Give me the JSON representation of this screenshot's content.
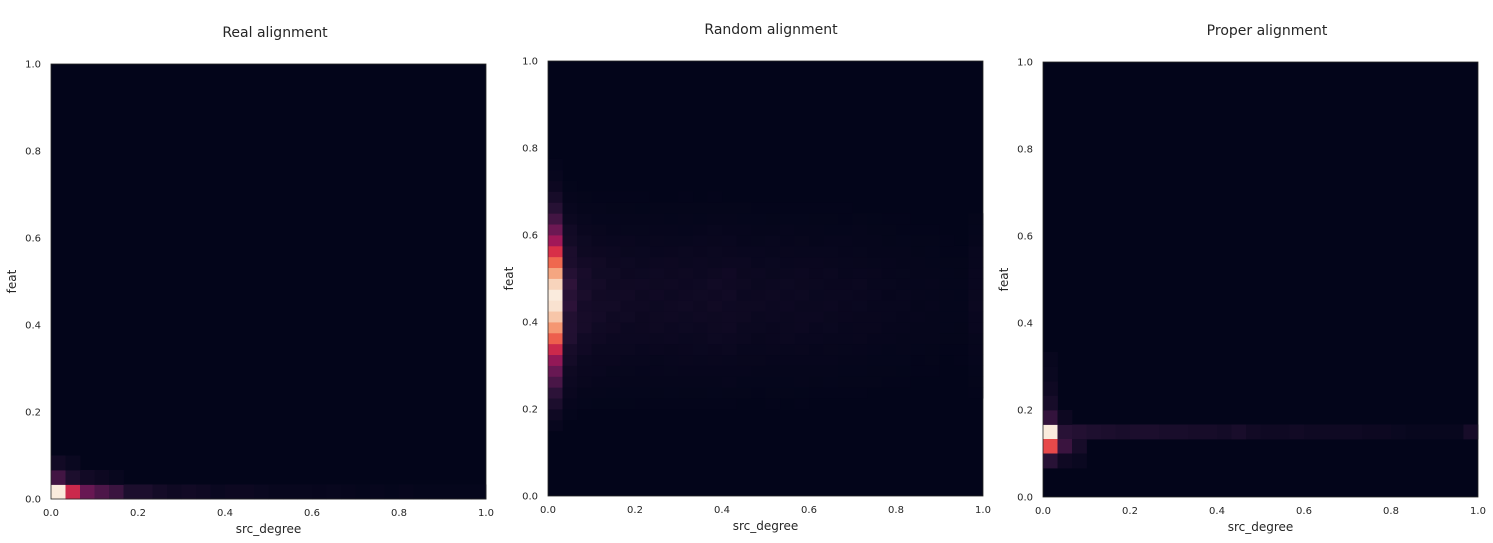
{
  "chart_data": [
    {
      "type": "heatmap",
      "title": "Real alignment",
      "xlabel": "src_degree",
      "ylabel": "feat",
      "xlim": [
        0,
        1
      ],
      "ylim": [
        0,
        1
      ],
      "xticks": [
        "0.0",
        "0.2",
        "0.4",
        "0.6",
        "0.8",
        "1.0"
      ],
      "yticks": [
        "0.0",
        "0.2",
        "0.4",
        "0.6",
        "0.8",
        "1.0"
      ],
      "bins": 30,
      "grid": false,
      "colormap": "rocket",
      "cells": [
        [
          0,
          0,
          1.0
        ],
        [
          1,
          0,
          0.55
        ],
        [
          2,
          0,
          0.32
        ],
        [
          3,
          0,
          0.25
        ],
        [
          4,
          0,
          0.2
        ],
        [
          5,
          0,
          0.1
        ],
        [
          6,
          0,
          0.1
        ],
        [
          7,
          0,
          0.07
        ],
        [
          8,
          0,
          0.05
        ],
        [
          9,
          0,
          0.06
        ],
        [
          10,
          0,
          0.05
        ],
        [
          11,
          0,
          0.03
        ],
        [
          12,
          0,
          0.04
        ],
        [
          13,
          0,
          0.04
        ],
        [
          14,
          0,
          0.03
        ],
        [
          15,
          0,
          0.02
        ],
        [
          16,
          0,
          0.02
        ],
        [
          17,
          0,
          0.02
        ],
        [
          18,
          0,
          0.015
        ],
        [
          19,
          0,
          0.02
        ],
        [
          20,
          0,
          0.015
        ],
        [
          21,
          0,
          0.01
        ],
        [
          22,
          0,
          0.015
        ],
        [
          23,
          0,
          0.01
        ],
        [
          24,
          0,
          0.015
        ],
        [
          25,
          0,
          0.01
        ],
        [
          26,
          0,
          0.01
        ],
        [
          27,
          0,
          0.01
        ],
        [
          28,
          0,
          0.01
        ],
        [
          29,
          0,
          0.01
        ],
        [
          0,
          1,
          0.22
        ],
        [
          1,
          1,
          0.1
        ],
        [
          2,
          1,
          0.06
        ],
        [
          3,
          1,
          0.04
        ],
        [
          4,
          1,
          0.02
        ],
        [
          0,
          2,
          0.06
        ],
        [
          1,
          2,
          0.03
        ]
      ]
    },
    {
      "type": "heatmap",
      "title": "Random alignment",
      "xlabel": "src_degree",
      "ylabel": "feat",
      "xlim": [
        0,
        1
      ],
      "ylim": [
        0,
        1
      ],
      "xticks": [
        "0.0",
        "0.2",
        "0.4",
        "0.6",
        "0.8",
        "1.0"
      ],
      "yticks": [
        "0.0",
        "0.2",
        "0.4",
        "0.6",
        "0.8",
        "1.0"
      ],
      "bins": 30,
      "grid": false,
      "colormap": "rocket",
      "column_profile": [
        1.0,
        0.16,
        0.09,
        0.07,
        0.06,
        0.055,
        0.05,
        0.05,
        0.05,
        0.05,
        0.05,
        0.055,
        0.055,
        0.045,
        0.04,
        0.04,
        0.04,
        0.04,
        0.035,
        0.035,
        0.03,
        0.03,
        0.025,
        0.02,
        0.02,
        0.015,
        0.015,
        0.01,
        0.01,
        0.03
      ],
      "row_profile": [
        0.0,
        0.0,
        0.0,
        0.0,
        0.0,
        0.0,
        0.02,
        0.05,
        0.1,
        0.16,
        0.24,
        0.32,
        0.42,
        0.55,
        0.7,
        0.82,
        0.92,
        0.98,
        1.0,
        0.95,
        0.85,
        0.72,
        0.58,
        0.45,
        0.33,
        0.22,
        0.14,
        0.08,
        0.04,
        0.02,
        0.01,
        0.0,
        0.0,
        0.0,
        0.0,
        0.0,
        0.0,
        0.0,
        0.0,
        0.0
      ],
      "row_bins": 40
    },
    {
      "type": "heatmap",
      "title": "Proper alignment",
      "xlabel": "src_degree",
      "ylabel": "feat",
      "xlim": [
        0,
        1
      ],
      "ylim": [
        0,
        1
      ],
      "xticks": [
        "0.0",
        "0.2",
        "0.4",
        "0.6",
        "0.8",
        "1.0"
      ],
      "yticks": [
        "0.0",
        "0.2",
        "0.4",
        "0.6",
        "0.8",
        "1.0"
      ],
      "bins": 30,
      "grid": false,
      "colormap": "rocket",
      "cells": [
        [
          0,
          4,
          1.0
        ],
        [
          1,
          4,
          0.15
        ],
        [
          2,
          4,
          0.13
        ],
        [
          3,
          4,
          0.11
        ],
        [
          4,
          4,
          0.1
        ],
        [
          5,
          4,
          0.09
        ],
        [
          6,
          4,
          0.1
        ],
        [
          7,
          4,
          0.1
        ],
        [
          8,
          4,
          0.09
        ],
        [
          9,
          4,
          0.09
        ],
        [
          10,
          4,
          0.08
        ],
        [
          11,
          4,
          0.08
        ],
        [
          12,
          4,
          0.07
        ],
        [
          13,
          4,
          0.09
        ],
        [
          14,
          4,
          0.06
        ],
        [
          15,
          4,
          0.05
        ],
        [
          16,
          4,
          0.05
        ],
        [
          17,
          4,
          0.06
        ],
        [
          18,
          4,
          0.05
        ],
        [
          19,
          4,
          0.05
        ],
        [
          20,
          4,
          0.05
        ],
        [
          21,
          4,
          0.05
        ],
        [
          22,
          4,
          0.04
        ],
        [
          23,
          4,
          0.04
        ],
        [
          24,
          4,
          0.03
        ],
        [
          25,
          4,
          0.02
        ],
        [
          26,
          4,
          0.02
        ],
        [
          27,
          4,
          0.02
        ],
        [
          28,
          4,
          0.02
        ],
        [
          29,
          4,
          0.08
        ],
        [
          0,
          3,
          0.65
        ],
        [
          1,
          3,
          0.2
        ],
        [
          2,
          3,
          0.08
        ],
        [
          0,
          2,
          0.15
        ],
        [
          1,
          2,
          0.05
        ],
        [
          2,
          2,
          0.03
        ],
        [
          0,
          5,
          0.18
        ],
        [
          1,
          5,
          0.04
        ],
        [
          0,
          6,
          0.08
        ],
        [
          0,
          7,
          0.05
        ],
        [
          0,
          8,
          0.03
        ],
        [
          0,
          9,
          0.02
        ]
      ]
    }
  ]
}
